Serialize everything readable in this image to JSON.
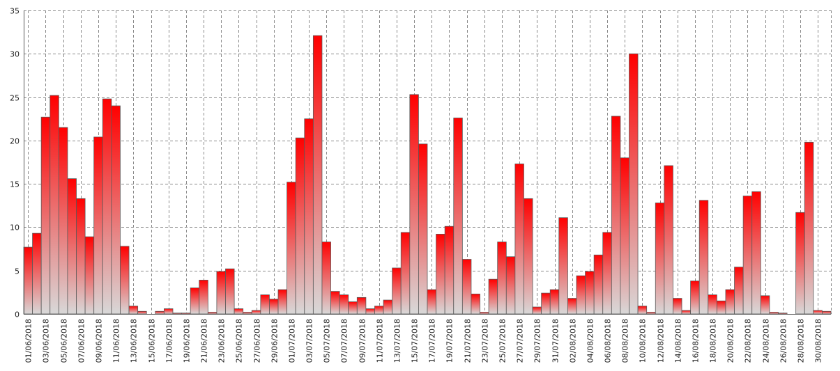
{
  "chart_data": {
    "type": "bar",
    "title": "",
    "xlabel": "",
    "ylabel": "",
    "ylim": [
      0,
      35
    ],
    "yticks": [
      0,
      5,
      10,
      15,
      20,
      25,
      30,
      35
    ],
    "grid": true,
    "legend": "none",
    "categories": [
      "01/06/2018",
      "02/06/2018",
      "03/06/2018",
      "04/06/2018",
      "05/06/2018",
      "06/06/2018",
      "07/06/2018",
      "08/06/2018",
      "09/06/2018",
      "10/06/2018",
      "11/06/2018",
      "12/06/2018",
      "13/06/2018",
      "14/06/2018",
      "15/06/2018",
      "16/06/2018",
      "17/06/2018",
      "18/06/2018",
      "19/06/2018",
      "20/06/2018",
      "21/06/2018",
      "22/06/2018",
      "23/06/2018",
      "24/06/2018",
      "25/06/2018",
      "26/06/2018",
      "27/06/2018",
      "28/06/2018",
      "29/06/2018",
      "30/06/2018",
      "01/07/2018",
      "02/07/2018",
      "03/07/2018",
      "04/07/2018",
      "05/07/2018",
      "06/07/2018",
      "07/07/2018",
      "08/07/2018",
      "09/07/2018",
      "10/07/2018",
      "11/07/2018",
      "12/07/2018",
      "13/07/2018",
      "14/07/2018",
      "15/07/2018",
      "16/07/2018",
      "17/07/2018",
      "18/07/2018",
      "19/07/2018",
      "20/07/2018",
      "21/07/2018",
      "22/07/2018",
      "23/07/2018",
      "24/07/2018",
      "25/07/2018",
      "26/07/2018",
      "27/07/2018",
      "28/07/2018",
      "29/07/2018",
      "30/07/2018",
      "31/07/2018",
      "01/08/2018",
      "02/08/2018",
      "03/08/2018",
      "04/08/2018",
      "05/08/2018",
      "06/08/2018",
      "07/08/2018",
      "08/08/2018",
      "09/08/2018",
      "10/08/2018",
      "11/08/2018",
      "12/08/2018",
      "13/08/2018",
      "14/08/2018",
      "15/08/2018",
      "16/08/2018",
      "17/08/2018",
      "18/08/2018",
      "19/08/2018",
      "20/08/2018",
      "21/08/2018",
      "22/08/2018",
      "23/08/2018",
      "24/08/2018",
      "25/08/2018",
      "26/08/2018",
      "27/08/2018",
      "28/08/2018",
      "29/08/2018",
      "30/08/2018",
      "31/08/2018"
    ],
    "visible_tick_labels": [
      "01/06/2018",
      "03/06/2018",
      "05/06/2018",
      "07/06/2018",
      "09/06/2018",
      "11/06/2018",
      "13/06/2018",
      "15/06/2018",
      "17/06/2018",
      "19/06/2018",
      "21/06/2018",
      "23/06/2018",
      "25/06/2018",
      "27/06/2018",
      "29/06/2018",
      "01/07/2018",
      "03/07/2018",
      "05/07/2018",
      "07/07/2018",
      "09/07/2018",
      "11/07/2018",
      "13/07/2018",
      "15/07/2018",
      "17/07/2018",
      "19/07/2018",
      "21/07/2018",
      "23/07/2018",
      "25/07/2018",
      "27/07/2018",
      "29/07/2018",
      "31/07/2018",
      "02/08/2018",
      "04/08/2018",
      "06/08/2018",
      "08/08/2018",
      "10/08/2018",
      "12/08/2018",
      "14/08/2018",
      "16/08/2018",
      "18/08/2018",
      "20/08/2018",
      "22/08/2018",
      "24/08/2018",
      "26/08/2018",
      "28/08/2018",
      "30/08/2018"
    ],
    "values": [
      7.7,
      9.3,
      22.7,
      25.2,
      21.5,
      15.6,
      13.3,
      8.9,
      20.4,
      24.8,
      24.0,
      7.8,
      0.9,
      0.3,
      0.0,
      0.3,
      0.6,
      0.1,
      0.1,
      3.0,
      3.9,
      0.2,
      4.9,
      5.2,
      0.6,
      0.2,
      0.4,
      2.2,
      1.7,
      2.8,
      15.2,
      20.3,
      22.5,
      32.1,
      8.3,
      2.6,
      2.2,
      1.4,
      1.9,
      0.6,
      0.9,
      1.6,
      5.3,
      9.4,
      25.3,
      19.6,
      2.8,
      9.2,
      10.1,
      22.6,
      6.3,
      2.3,
      0.2,
      4.0,
      8.3,
      6.6,
      17.3,
      13.3,
      0.8,
      2.4,
      2.8,
      11.1,
      1.8,
      4.4,
      4.9,
      6.8,
      9.4,
      22.8,
      18.0,
      30.0,
      0.9,
      0.2,
      12.8,
      17.1,
      1.8,
      0.4,
      3.8,
      13.1,
      2.2,
      1.5,
      2.8,
      5.4,
      13.6,
      14.1,
      2.1,
      0.2,
      0.1,
      0.0,
      11.7,
      19.8,
      0.4,
      0.3
    ],
    "colors": {
      "bar_top": "#ff0000",
      "bar_bottom": "#d8d8d8",
      "bar_stroke": "#5a5a5a",
      "grid": "#8a8a8a",
      "axis": "#555555"
    }
  }
}
